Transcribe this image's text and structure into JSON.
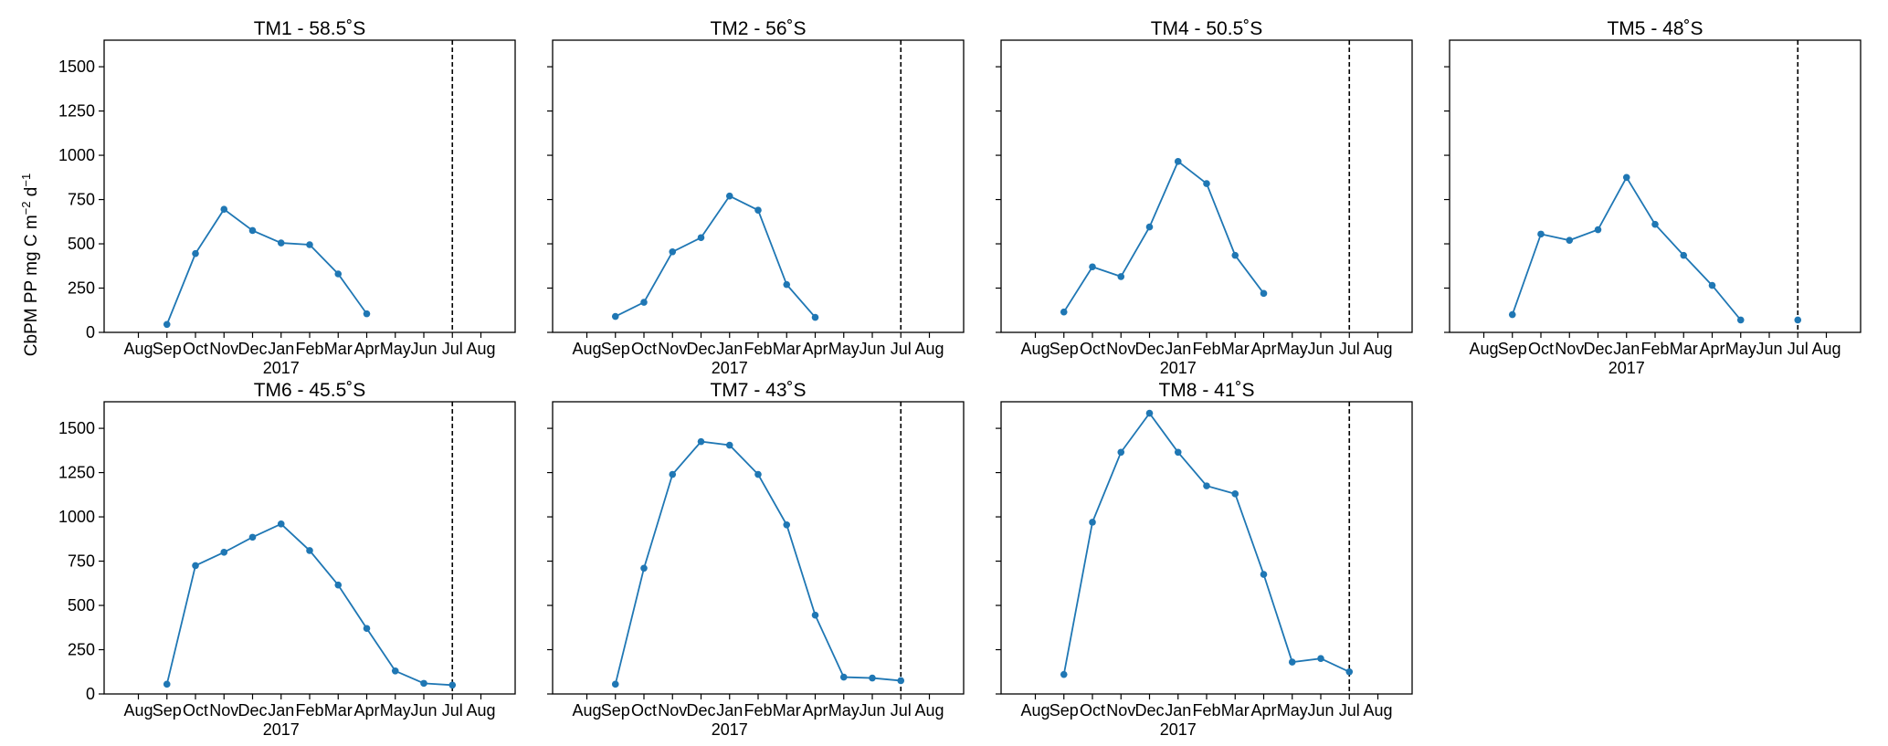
{
  "figure": {
    "ylabel": "CbPM PP mg C m",
    "ylabel_sup1": "−2",
    "ylabel_mid": " d",
    "ylabel_sup2": "−1"
  },
  "colors": {
    "line": "#1f77b4",
    "axis": "#000000",
    "vline": "#000000"
  },
  "axes_common": {
    "x_ticks": [
      "Aug",
      "Sep",
      "Oct",
      "Nov",
      "Dec",
      "Jan",
      "Feb",
      "Mar",
      "Apr",
      "May",
      "Jun",
      "Jul",
      "Aug"
    ],
    "xlabel": "2017",
    "y_ticks": [
      0,
      250,
      500,
      750,
      1000,
      1250,
      1500
    ],
    "ylim": [
      0,
      1650
    ],
    "xlim_index": [
      0,
      12
    ],
    "vline_month": "Jul"
  },
  "chart_data": [
    {
      "type": "line",
      "title": "TM1 - 58.5˚S",
      "series": [
        {
          "x": [
            "Sep",
            "Oct",
            "Nov",
            "Dec",
            "Jan",
            "Feb",
            "Mar",
            "Apr"
          ],
          "values": [
            45,
            445,
            695,
            575,
            505,
            495,
            330,
            105
          ]
        }
      ]
    },
    {
      "type": "line",
      "title": "TM2 - 56˚S",
      "series": [
        {
          "x": [
            "Sep",
            "Oct",
            "Nov",
            "Dec",
            "Jan",
            "Feb",
            "Mar",
            "Apr"
          ],
          "values": [
            90,
            170,
            455,
            535,
            770,
            690,
            270,
            85
          ]
        }
      ]
    },
    {
      "type": "line",
      "title": "TM4 - 50.5˚S",
      "series": [
        {
          "x": [
            "Sep",
            "Oct",
            "Nov",
            "Dec",
            "Jan",
            "Feb",
            "Mar",
            "Apr"
          ],
          "values": [
            115,
            370,
            315,
            595,
            965,
            840,
            435,
            220
          ]
        }
      ]
    },
    {
      "type": "line",
      "title": "TM5 - 48˚S",
      "series": [
        {
          "x": [
            "Sep",
            "Oct",
            "Nov",
            "Dec",
            "Jan",
            "Feb",
            "Mar",
            "Apr",
            "May"
          ],
          "values": [
            100,
            555,
            520,
            580,
            875,
            610,
            435,
            265,
            70
          ]
        }
      ],
      "extra_points": [
        {
          "x": "Jul",
          "value": 70
        }
      ]
    },
    {
      "type": "line",
      "title": "TM6 - 45.5˚S",
      "series": [
        {
          "x": [
            "Sep",
            "Oct",
            "Nov",
            "Dec",
            "Jan",
            "Feb",
            "Mar",
            "Apr",
            "May",
            "Jun",
            "Jul"
          ],
          "values": [
            55,
            725,
            800,
            885,
            960,
            810,
            615,
            370,
            130,
            60,
            50
          ]
        }
      ]
    },
    {
      "type": "line",
      "title": "TM7 - 43˚S",
      "series": [
        {
          "x": [
            "Sep",
            "Oct",
            "Nov",
            "Dec",
            "Jan",
            "Feb",
            "Mar",
            "Apr",
            "May",
            "Jun",
            "Jul"
          ],
          "values": [
            55,
            710,
            1240,
            1425,
            1405,
            1240,
            955,
            445,
            95,
            90,
            75
          ]
        }
      ]
    },
    {
      "type": "line",
      "title": "TM8 - 41˚S",
      "series": [
        {
          "x": [
            "Sep",
            "Oct",
            "Nov",
            "Dec",
            "Jan",
            "Feb",
            "Mar",
            "Apr",
            "May",
            "Jun",
            "Jul"
          ],
          "values": [
            110,
            970,
            1365,
            1585,
            1365,
            1175,
            1130,
            675,
            180,
            200,
            125
          ]
        }
      ]
    }
  ]
}
